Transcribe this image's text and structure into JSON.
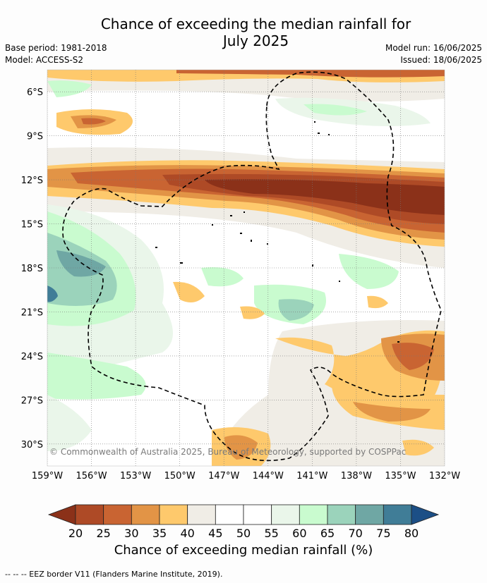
{
  "title": {
    "line1": "Chance of exceeding the median rainfall for",
    "line2": "July 2025"
  },
  "meta": {
    "base_period": "Base period: 1981-2018",
    "model": "Model: ACCESS-S2",
    "model_run": "Model run: 16/06/2025",
    "issued": "Issued: 18/06/2025"
  },
  "map": {
    "lat_labels": [
      "6°S",
      "9°S",
      "12°S",
      "15°S",
      "18°S",
      "21°S",
      "24°S",
      "27°S",
      "30°S"
    ],
    "lon_labels": [
      "159°W",
      "156°W",
      "153°W",
      "150°W",
      "147°W",
      "144°W",
      "141°W",
      "138°W",
      "135°W",
      "132°W"
    ],
    "lat_values": [
      -6,
      -9,
      -12,
      -15,
      -18,
      -21,
      -24,
      -27,
      -30
    ],
    "lon_values": [
      -159,
      -156,
      -153,
      -150,
      -147,
      -144,
      -141,
      -138,
      -135,
      -132
    ],
    "lat_range": [
      -31.5,
      -4.5
    ],
    "lon_range": [
      -159,
      -132
    ],
    "grid": true,
    "copyright": "© Commonwealth of Australia 2025, Bureau of Meteorology, supported by COSPPac"
  },
  "colorbar": {
    "ticks": [
      "20",
      "25",
      "30",
      "35",
      "40",
      "45",
      "50",
      "55",
      "60",
      "65",
      "70",
      "75",
      "80"
    ],
    "colors": [
      "#8b3119",
      "#ae4a26",
      "#c96432",
      "#e29446",
      "#fec96c",
      "#f0ede6",
      "#ffffff",
      "#ffffff",
      "#eaf6ea",
      "#c9fbcf",
      "#9bd3bb",
      "#6fa7a4",
      "#407d97",
      "#1c4f86"
    ],
    "label": "Chance of exceeding median rainfall (%)"
  },
  "footer": "-- -- -- EEZ border V11 (Flanders Marine Institute, 2019)."
}
